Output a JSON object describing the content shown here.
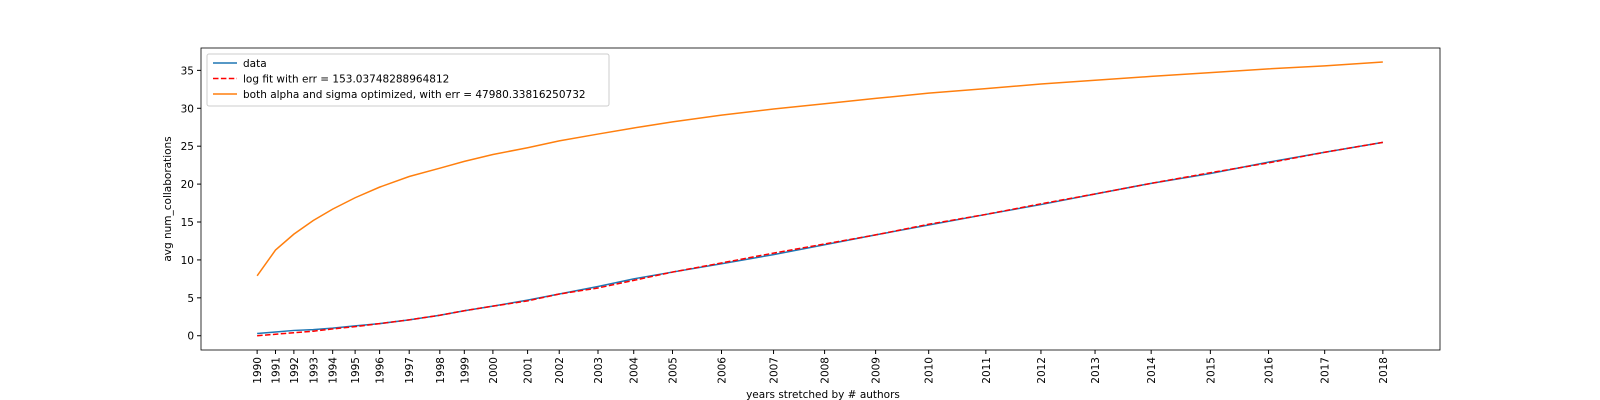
{
  "chart_data": {
    "type": "line",
    "x_label": "years stretched by # authors",
    "y_label": "avg num_collaborations",
    "x": [
      0,
      18,
      36,
      55,
      74,
      96,
      120,
      149,
      179,
      203,
      231,
      265,
      296,
      334,
      369,
      407,
      455,
      506,
      556,
      606,
      658,
      714,
      768,
      821,
      876,
      934,
      991,
      1046,
      1103
    ],
    "xlim": [
      -55,
      1159
    ],
    "xticks": [
      {
        "value": 0,
        "label": "1990"
      },
      {
        "value": 18,
        "label": "1991"
      },
      {
        "value": 36,
        "label": "1992"
      },
      {
        "value": 55,
        "label": "1993"
      },
      {
        "value": 74,
        "label": "1994"
      },
      {
        "value": 96,
        "label": "1995"
      },
      {
        "value": 120,
        "label": "1996"
      },
      {
        "value": 149,
        "label": "1997"
      },
      {
        "value": 179,
        "label": "1998"
      },
      {
        "value": 203,
        "label": "1999"
      },
      {
        "value": 231,
        "label": "2000"
      },
      {
        "value": 265,
        "label": "2001"
      },
      {
        "value": 296,
        "label": "2002"
      },
      {
        "value": 334,
        "label": "2003"
      },
      {
        "value": 369,
        "label": "2004"
      },
      {
        "value": 407,
        "label": "2005"
      },
      {
        "value": 455,
        "label": "2006"
      },
      {
        "value": 506,
        "label": "2007"
      },
      {
        "value": 556,
        "label": "2008"
      },
      {
        "value": 606,
        "label": "2009"
      },
      {
        "value": 658,
        "label": "2010"
      },
      {
        "value": 714,
        "label": "2011"
      },
      {
        "value": 768,
        "label": "2012"
      },
      {
        "value": 821,
        "label": "2013"
      },
      {
        "value": 876,
        "label": "2014"
      },
      {
        "value": 934,
        "label": "2015"
      },
      {
        "value": 991,
        "label": "2016"
      },
      {
        "value": 1046,
        "label": "2017"
      },
      {
        "value": 1103,
        "label": "2018"
      }
    ],
    "ylim": [
      -1.88,
      37.95
    ],
    "yticks": [
      0,
      5,
      10,
      15,
      20,
      25,
      30,
      35
    ],
    "legend": "upper left",
    "series": [
      {
        "name": "data",
        "color": "#1f77b4",
        "dash": false,
        "values": [
          0.3,
          0.5,
          0.7,
          0.8,
          1.0,
          1.3,
          1.6,
          2.1,
          2.7,
          3.3,
          3.9,
          4.7,
          5.5,
          6.5,
          7.5,
          8.4,
          9.5,
          10.7,
          12.0,
          13.3,
          14.6,
          16.0,
          17.3,
          18.7,
          20.1,
          21.4,
          22.9,
          24.2,
          25.5
        ]
      },
      {
        "name": "log fit with err = 153.03748288964812",
        "color": "#ff0000",
        "dash": true,
        "values": [
          0.0,
          0.2,
          0.4,
          0.6,
          0.9,
          1.2,
          1.6,
          2.1,
          2.7,
          3.3,
          3.9,
          4.6,
          5.5,
          6.3,
          7.3,
          8.4,
          9.6,
          10.9,
          12.1,
          13.3,
          14.7,
          16.0,
          17.4,
          18.7,
          20.1,
          21.5,
          22.8,
          24.2,
          25.5
        ]
      },
      {
        "name": "both alpha and sigma optimized, with err = 47980.33816250732",
        "color": "#ff7f0e",
        "dash": false,
        "values": [
          7.9,
          11.3,
          13.4,
          15.2,
          16.7,
          18.2,
          19.6,
          21.0,
          22.1,
          23.0,
          23.9,
          24.8,
          25.7,
          26.6,
          27.4,
          28.2,
          29.1,
          29.9,
          30.6,
          31.3,
          32.0,
          32.6,
          33.2,
          33.7,
          34.2,
          34.7,
          35.2,
          35.6,
          36.1
        ]
      }
    ]
  }
}
